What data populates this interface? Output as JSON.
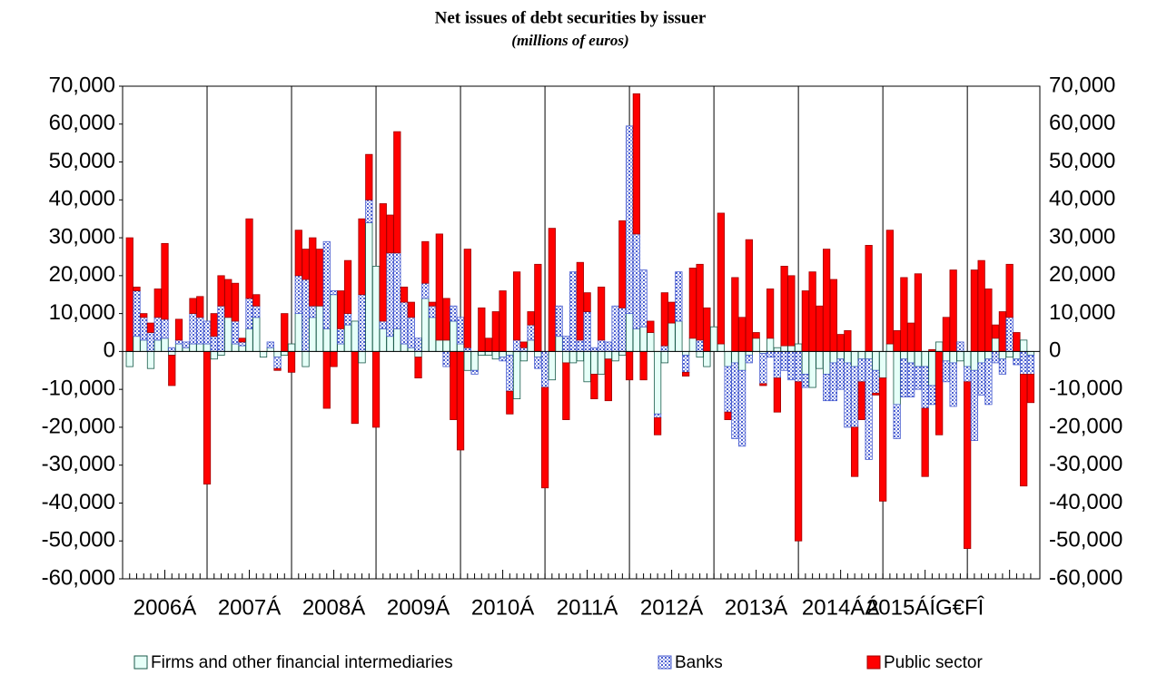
{
  "chart_data": {
    "type": "bar",
    "stacked": true,
    "title": "Net issues of debt securities by issuer",
    "subtitle": "(millions of euros)",
    "categories": [
      null,
      null,
      null,
      null,
      null,
      null,
      null,
      null,
      null,
      null,
      null,
      null,
      null,
      null,
      null,
      null,
      null,
      null,
      null,
      null,
      null,
      null,
      null,
      null,
      null,
      null,
      null,
      null,
      null,
      null,
      null,
      null,
      null,
      null,
      null,
      null,
      null,
      null,
      null,
      null,
      null,
      null,
      null,
      null,
      null,
      null,
      null,
      null,
      null,
      null,
      null,
      null,
      null,
      null,
      null,
      null,
      null,
      null,
      null,
      null,
      null,
      null,
      null,
      null,
      null,
      null,
      null,
      null,
      null,
      null,
      null,
      null,
      null,
      null,
      null,
      null,
      null,
      null,
      null,
      null,
      null,
      null,
      null,
      null,
      null,
      null,
      null,
      null,
      null,
      null,
      null,
      null,
      null,
      null,
      null,
      null,
      null,
      null,
      null,
      null,
      null,
      null,
      null,
      null,
      null,
      null,
      null,
      null,
      null,
      null,
      null,
      null,
      null,
      null,
      null,
      null,
      null,
      null,
      null,
      null,
      null,
      null,
      null,
      null,
      null,
      null,
      null,
      null,
      null
    ],
    "year_labels": [
      "2006Á",
      "2007Á",
      "2008Á",
      "2009Á",
      "2010Á",
      "2011Á",
      "2012Á",
      "2013Á",
      "2014ÁÁ",
      "2015ÁÍG€FÎ"
    ],
    "series": [
      {
        "name": "Firms and other financial intermediaries",
        "color": "#e6fff8",
        "values": [
          -4000,
          4000,
          3000,
          -4500,
          3000,
          3500,
          -1000,
          2000,
          1000,
          2000,
          2000,
          2000,
          -2000,
          -1000,
          9000,
          2000,
          1500,
          6000,
          9000,
          -1500,
          1000,
          -1500,
          -1000,
          2000,
          10000,
          -4000,
          9000,
          12000,
          6000,
          15000,
          2000,
          7000,
          8000,
          -3000,
          34000,
          22500,
          6000,
          4000,
          6000,
          2000,
          1000,
          -1500,
          14000,
          9000,
          3000,
          3000,
          8000,
          2000,
          -5000,
          -5000,
          -1000,
          -1000,
          -2000,
          -1500,
          -1000,
          -12500,
          -2500,
          3000,
          -1500,
          0,
          -7500,
          4000,
          -3000,
          -3000,
          -2500,
          -8000,
          -6000,
          -6000,
          -2000,
          -2500,
          -1000,
          10000,
          6000,
          6500,
          5000,
          -16500,
          -3000,
          7500,
          8000,
          -1000,
          3500,
          -1500,
          -4000,
          6500,
          2000,
          -4000,
          -3000,
          -5000,
          -1000,
          3500,
          -500,
          3500,
          1000,
          1500,
          1500,
          2000,
          -6000,
          -9500,
          -4500,
          -6000,
          -3000,
          -2000,
          -3000,
          -4000,
          -2000,
          -2000,
          -5000,
          -7000,
          2000,
          -14000,
          -2000,
          -3000,
          -4000,
          -4000,
          -9000,
          2500,
          -2500,
          -3000,
          -2500,
          -4000,
          -5000,
          -3000,
          -2000,
          3500,
          -2000,
          -1500,
          -2000,
          3000,
          -1000
        ]
      },
      {
        "name": "Banks",
        "color": "#9aa6e8",
        "values": [
          0,
          12000,
          6000,
          5000,
          6000,
          5000,
          1000,
          1000,
          1500,
          8000,
          7000,
          6000,
          4000,
          12000,
          0,
          6000,
          1000,
          8000,
          3000,
          0,
          1500,
          -3000,
          0,
          0,
          10000,
          19000,
          3000,
          0,
          23000,
          1000,
          4000,
          3000,
          0,
          15000,
          6000,
          0,
          2000,
          22000,
          20000,
          11000,
          8000,
          3500,
          4000,
          3000,
          0,
          -4000,
          4000,
          7000,
          1000,
          -1000,
          0,
          0,
          0,
          -1000,
          -9500,
          3000,
          1000,
          4000,
          -3000,
          -9500,
          0,
          8000,
          4000,
          21000,
          3000,
          10500,
          1000,
          3000,
          2500,
          12000,
          11500,
          49500,
          25000,
          15000,
          0,
          -1000,
          1500,
          0,
          13000,
          -4500,
          0,
          3000,
          0,
          0,
          0,
          -12000,
          -20000,
          -20000,
          -2000,
          0,
          -8000,
          -1500,
          -7000,
          -5000,
          -7500,
          -8000,
          -3500,
          0,
          0,
          -7000,
          -10000,
          -8000,
          -17000,
          -16000,
          -6000,
          -26500,
          -6000,
          0,
          0,
          -9000,
          -10000,
          -9000,
          -6000,
          -11000,
          -5000,
          0,
          -5500,
          -11500,
          2500,
          -4000,
          -18500,
          -8500,
          -12000,
          -3000,
          -4000,
          9000,
          -1500,
          -6000,
          -5000
        ]
      },
      {
        "name": "Public sector",
        "color": "#ff0000",
        "values": [
          30000,
          1000,
          1000,
          2500,
          7500,
          20000,
          -8000,
          5500,
          0,
          4000,
          5500,
          -35000,
          6000,
          8000,
          10000,
          10000,
          1000,
          21000,
          3000,
          0,
          0,
          -500,
          10000,
          -5500,
          12000,
          8000,
          18000,
          15000,
          -15000,
          -4000,
          10000,
          14000,
          -19000,
          20000,
          12000,
          -20000,
          31000,
          10000,
          32000,
          4000,
          4000,
          -5500,
          11000,
          1000,
          28000,
          11000,
          -18000,
          -26000,
          26000,
          0,
          11500,
          3500,
          10500,
          16000,
          -6000,
          18000,
          1500,
          3500,
          23000,
          -26500,
          32500,
          0,
          -15000,
          0,
          20500,
          5000,
          -6500,
          14000,
          -11000,
          0,
          23000,
          -7500,
          37000,
          -7500,
          3000,
          -4500,
          14000,
          5500,
          0,
          -1000,
          18500,
          20000,
          11500,
          0,
          34500,
          -2000,
          19500,
          9000,
          29500,
          1500,
          -500,
          13000,
          -9000,
          21000,
          18500,
          -42000,
          16000,
          21000,
          12000,
          27000,
          19000,
          4500,
          5500,
          -13000,
          -10000,
          28000,
          -500,
          -32500,
          30000,
          5500,
          19500,
          7500,
          20500,
          -18000,
          500,
          -22000,
          9000,
          21500,
          0,
          -44000,
          21500,
          24000,
          16500,
          3500,
          10500,
          14000,
          5000,
          -29500,
          -7500
        ]
      }
    ],
    "ylim": [
      -60000,
      70000
    ],
    "yticks": [
      {
        "value": -60000,
        "label": "-60,000"
      },
      {
        "value": -50000,
        "label": "-50,000"
      },
      {
        "value": -40000,
        "label": "-40,000"
      },
      {
        "value": -30000,
        "label": "-30,000"
      },
      {
        "value": -20000,
        "label": "-20,000"
      },
      {
        "value": -10000,
        "label": "-10,000"
      },
      0,
      {
        "value": 10000,
        "label": "10,000"
      },
      {
        "value": 20000,
        "label": "20,000"
      },
      {
        "value": 30000,
        "label": "30,000"
      },
      {
        "value": 40000,
        "label": "40,000"
      },
      {
        "value": 50000,
        "label": "50,000"
      },
      {
        "value": 60000,
        "label": "60,000"
      },
      {
        "value": 70000,
        "label": "70,000"
      }
    ]
  }
}
